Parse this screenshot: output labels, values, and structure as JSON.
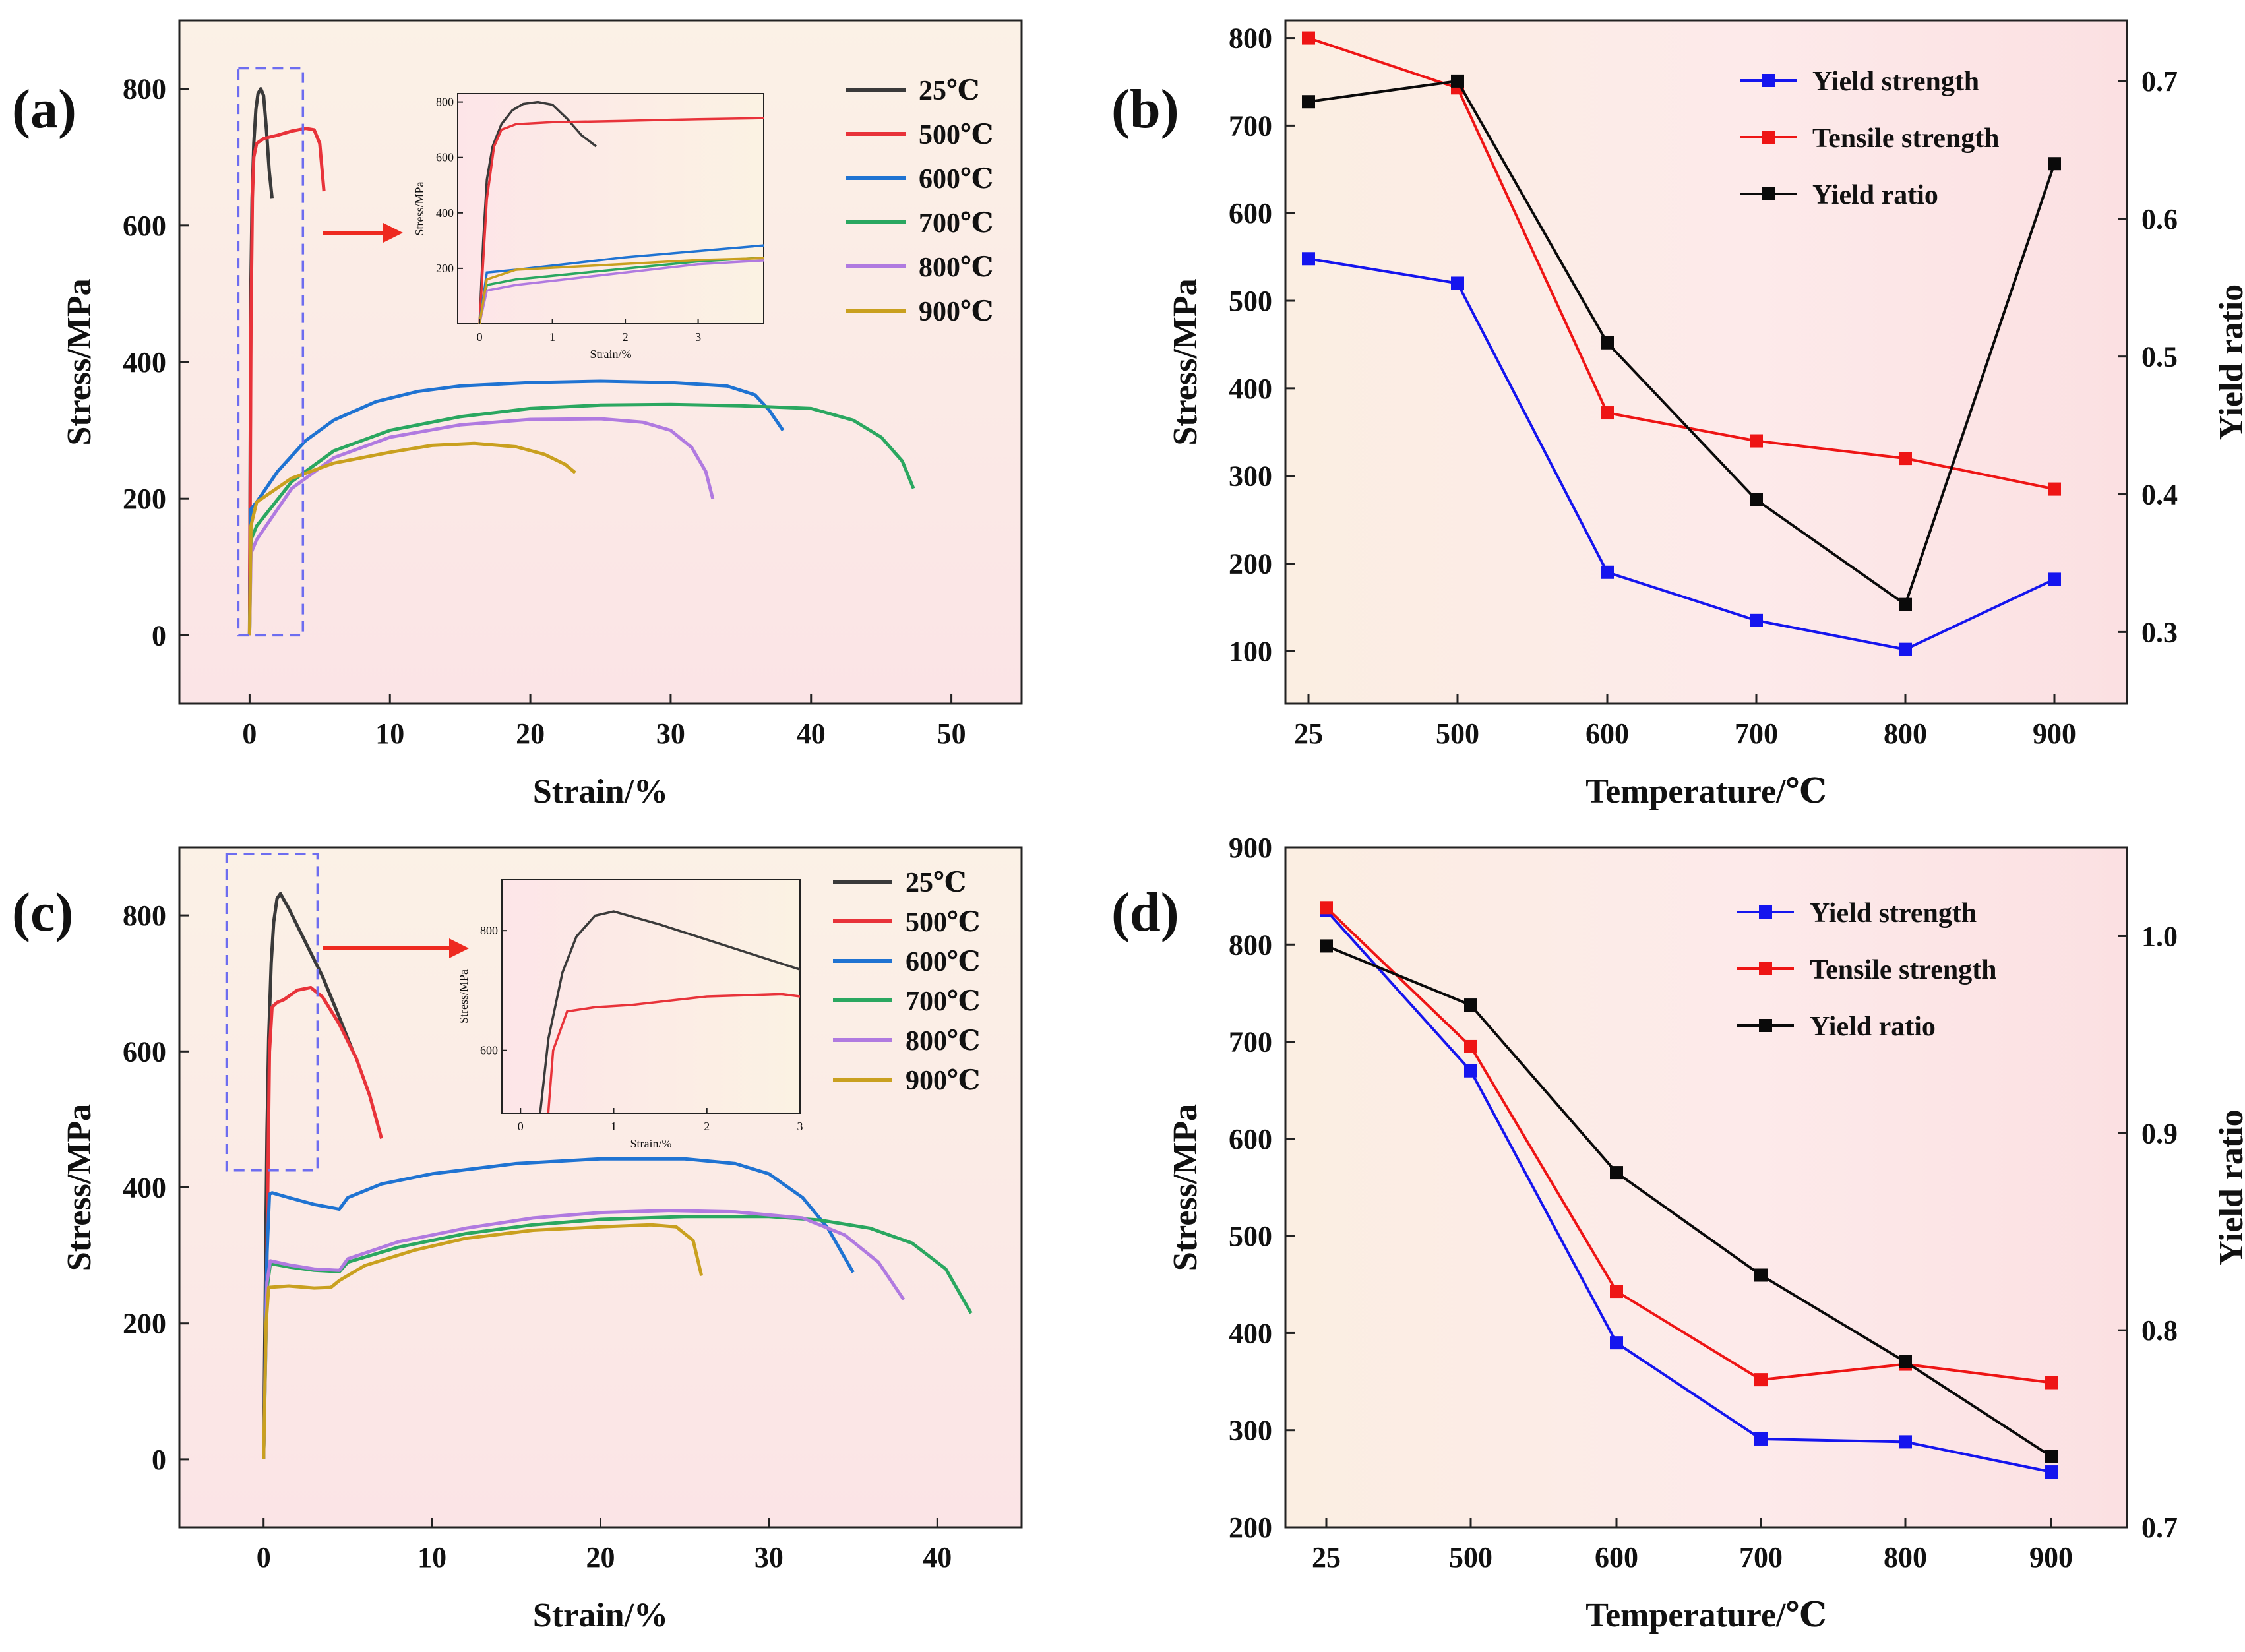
{
  "colors": {
    "25": "#3a3a3a",
    "500": "#e8333a",
    "600": "#1f73d2",
    "700": "#2aa760",
    "800": "#b07ae0",
    "900": "#c9a01f",
    "ys": "#1515ee",
    "ts": "#ee1515",
    "yr": "#0a0a0a",
    "box": "#6d6df0",
    "arrow": "#ee2a20",
    "bgTop": "#fbe3e3",
    "bgMid": "#fbefe3",
    "bgRight": "#fdebeb"
  },
  "chart_data": [
    {
      "id": "a",
      "label": "(a)",
      "type": "line",
      "xlabel": "Strain/%",
      "ylabel": "Stress/MPa",
      "xlim": [
        -5,
        55
      ],
      "ylim": [
        -100,
        900
      ],
      "xticks": [
        0,
        10,
        20,
        30,
        40,
        50
      ],
      "yticks": [
        0,
        200,
        400,
        600,
        800
      ],
      "zoom_box": {
        "x": [
          -0.8,
          3.8
        ],
        "y": [
          0,
          830
        ]
      },
      "series": [
        {
          "name": "25℃",
          "key": "25",
          "points": [
            [
              0,
              0
            ],
            [
              0.05,
              300
            ],
            [
              0.1,
              520
            ],
            [
              0.18,
              640
            ],
            [
              0.3,
              720
            ],
            [
              0.45,
              770
            ],
            [
              0.6,
              793
            ],
            [
              0.8,
              800
            ],
            [
              1.0,
              790
            ],
            [
              1.2,
              740
            ],
            [
              1.4,
              680
            ],
            [
              1.6,
              640
            ]
          ]
        },
        {
          "name": "500℃",
          "key": "500",
          "points": [
            [
              0,
              0
            ],
            [
              0.1,
              450
            ],
            [
              0.2,
              640
            ],
            [
              0.3,
              700
            ],
            [
              0.5,
              720
            ],
            [
              1,
              727
            ],
            [
              2,
              732
            ],
            [
              3,
              738
            ],
            [
              4,
              742
            ],
            [
              4.6,
              740
            ],
            [
              5,
              720
            ],
            [
              5.3,
              650
            ]
          ]
        },
        {
          "name": "600℃",
          "key": "600",
          "points": [
            [
              0,
              0
            ],
            [
              0.1,
              185
            ],
            [
              0.5,
              195
            ],
            [
              2,
              240
            ],
            [
              4,
              285
            ],
            [
              6,
              315
            ],
            [
              9,
              342
            ],
            [
              12,
              357
            ],
            [
              15,
              365
            ],
            [
              20,
              370
            ],
            [
              25,
              372
            ],
            [
              30,
              370
            ],
            [
              34,
              365
            ],
            [
              36,
              352
            ],
            [
              37,
              330
            ],
            [
              38,
              300
            ]
          ]
        },
        {
          "name": "700℃",
          "key": "700",
          "points": [
            [
              0,
              0
            ],
            [
              0.1,
              140
            ],
            [
              0.5,
              160
            ],
            [
              3,
              225
            ],
            [
              6,
              270
            ],
            [
              10,
              300
            ],
            [
              15,
              320
            ],
            [
              20,
              332
            ],
            [
              25,
              337
            ],
            [
              30,
              338
            ],
            [
              35,
              336
            ],
            [
              40,
              332
            ],
            [
              43,
              315
            ],
            [
              45,
              290
            ],
            [
              46.5,
              255
            ],
            [
              47.3,
              215
            ]
          ]
        },
        {
          "name": "800℃",
          "key": "800",
          "points": [
            [
              0,
              0
            ],
            [
              0.1,
              120
            ],
            [
              0.5,
              140
            ],
            [
              3,
              215
            ],
            [
              6,
              260
            ],
            [
              10,
              290
            ],
            [
              15,
              308
            ],
            [
              20,
              316
            ],
            [
              25,
              317
            ],
            [
              28,
              312
            ],
            [
              30,
              300
            ],
            [
              31.5,
              275
            ],
            [
              32.5,
              240
            ],
            [
              33,
              200
            ]
          ]
        },
        {
          "name": "900℃",
          "key": "900",
          "points": [
            [
              0,
              0
            ],
            [
              0.1,
              160
            ],
            [
              0.5,
              195
            ],
            [
              3,
              230
            ],
            [
              6,
              252
            ],
            [
              10,
              268
            ],
            [
              13,
              278
            ],
            [
              16,
              281
            ],
            [
              19,
              276
            ],
            [
              21,
              265
            ],
            [
              22.5,
              250
            ],
            [
              23.2,
              238
            ]
          ]
        }
      ],
      "inset": {
        "xlabel": "Strain/%",
        "ylabel": "Stress/MPa",
        "xlim": [
          -0.3,
          3.9
        ],
        "ylim": [
          0,
          830
        ],
        "xticks": [
          0,
          1,
          2,
          3
        ],
        "yticks": [
          200,
          400,
          600,
          800
        ]
      }
    },
    {
      "id": "b",
      "label": "(b)",
      "type": "line",
      "xlabel": "Temperature/℃",
      "ylabel": "Stress/MPa",
      "y2label": "Yield ratio",
      "categories": [
        "25",
        "500",
        "600",
        "700",
        "800",
        "900"
      ],
      "ylim": [
        40,
        820
      ],
      "y2lim": [
        0.248,
        0.744
      ],
      "yticks": [
        100,
        200,
        300,
        400,
        500,
        600,
        700,
        800
      ],
      "y2ticks": [
        0.3,
        0.4,
        0.5,
        0.6,
        0.7
      ],
      "series": [
        {
          "name": "Yield strength",
          "key": "ys",
          "axis": "left",
          "values": [
            548,
            520,
            190,
            135,
            102,
            182
          ]
        },
        {
          "name": "Tensile strength",
          "key": "ts",
          "axis": "left",
          "values": [
            800,
            743,
            372,
            340,
            320,
            285
          ]
        },
        {
          "name": "Yield ratio",
          "key": "yr",
          "axis": "right",
          "values": [
            0.685,
            0.7,
            0.51,
            0.396,
            0.32,
            0.64
          ]
        }
      ]
    },
    {
      "id": "c",
      "label": "(c)",
      "type": "line",
      "xlabel": "Strain/%",
      "ylabel": "Stress/MPa",
      "xlim": [
        -5,
        45
      ],
      "ylim": [
        -100,
        900
      ],
      "xticks": [
        0,
        10,
        20,
        30,
        40
      ],
      "yticks": [
        0,
        200,
        400,
        600,
        800
      ],
      "zoom_box": {
        "x": [
          -2.2,
          3.2
        ],
        "y": [
          425,
          890
        ]
      },
      "series": [
        {
          "name": "25℃",
          "key": "25",
          "points": [
            [
              0,
              0
            ],
            [
              0.1,
              250
            ],
            [
              0.2,
              480
            ],
            [
              0.3,
              620
            ],
            [
              0.45,
              730
            ],
            [
              0.6,
              790
            ],
            [
              0.8,
              825
            ],
            [
              1.0,
              832
            ],
            [
              1.5,
              810
            ],
            [
              2.5,
              760
            ],
            [
              3.5,
              710
            ],
            [
              4.5,
              650
            ],
            [
              5.3,
              600
            ]
          ]
        },
        {
          "name": "500℃",
          "key": "500",
          "points": [
            [
              0,
              0
            ],
            [
              0.2,
              300
            ],
            [
              0.35,
              600
            ],
            [
              0.5,
              665
            ],
            [
              0.8,
              672
            ],
            [
              1.2,
              676
            ],
            [
              2,
              690
            ],
            [
              2.8,
              694
            ],
            [
              3.5,
              680
            ],
            [
              4.5,
              640
            ],
            [
              5.5,
              590
            ],
            [
              6.3,
              535
            ],
            [
              7,
              472
            ]
          ]
        },
        {
          "name": "600℃",
          "key": "600",
          "points": [
            [
              0,
              0
            ],
            [
              0.2,
              300
            ],
            [
              0.35,
              390
            ],
            [
              0.5,
              392
            ],
            [
              1.5,
              385
            ],
            [
              3,
              375
            ],
            [
              4.5,
              368
            ],
            [
              5,
              385
            ],
            [
              7,
              405
            ],
            [
              10,
              420
            ],
            [
              15,
              435
            ],
            [
              20,
              442
            ],
            [
              25,
              442
            ],
            [
              28,
              435
            ],
            [
              30,
              420
            ],
            [
              32,
              385
            ],
            [
              33.5,
              340
            ],
            [
              35,
              275
            ]
          ]
        },
        {
          "name": "700℃",
          "key": "700",
          "points": [
            [
              0,
              0
            ],
            [
              0.2,
              250
            ],
            [
              0.4,
              288
            ],
            [
              1.5,
              283
            ],
            [
              3,
              278
            ],
            [
              4.5,
              276
            ],
            [
              5,
              290
            ],
            [
              8,
              312
            ],
            [
              12,
              332
            ],
            [
              16,
              345
            ],
            [
              20,
              353
            ],
            [
              25,
              357
            ],
            [
              30,
              357
            ],
            [
              33,
              352
            ],
            [
              36,
              340
            ],
            [
              38.5,
              318
            ],
            [
              40.5,
              280
            ],
            [
              42,
              215
            ]
          ]
        },
        {
          "name": "800℃",
          "key": "800",
          "points": [
            [
              0,
              0
            ],
            [
              0.2,
              260
            ],
            [
              0.4,
              292
            ],
            [
              1.5,
              286
            ],
            [
              3,
              280
            ],
            [
              4.5,
              278
            ],
            [
              5,
              295
            ],
            [
              8,
              320
            ],
            [
              12,
              340
            ],
            [
              16,
              355
            ],
            [
              20,
              363
            ],
            [
              24,
              366
            ],
            [
              28,
              364
            ],
            [
              32,
              355
            ],
            [
              34.5,
              330
            ],
            [
              36.5,
              290
            ],
            [
              38,
              235
            ]
          ]
        },
        {
          "name": "900℃",
          "key": "900",
          "points": [
            [
              0,
              0
            ],
            [
              0.15,
              200
            ],
            [
              0.3,
              253
            ],
            [
              1.5,
              255
            ],
            [
              3,
              252
            ],
            [
              4,
              253
            ],
            [
              4.5,
              263
            ],
            [
              6,
              285
            ],
            [
              9,
              308
            ],
            [
              12,
              325
            ],
            [
              16,
              337
            ],
            [
              20,
              342
            ],
            [
              23,
              345
            ],
            [
              24.5,
              342
            ],
            [
              25.5,
              322
            ],
            [
              26,
              270
            ]
          ]
        }
      ],
      "inset": {
        "xlabel": "Strain/%",
        "ylabel": "Stress/MPa",
        "xlim": [
          -0.2,
          3.0
        ],
        "ylim": [
          495,
          885
        ],
        "xticks": [
          0,
          1,
          2,
          3
        ],
        "yticks": [
          600,
          800
        ]
      }
    },
    {
      "id": "d",
      "label": "(d)",
      "type": "line",
      "xlabel": "Temperature/℃",
      "ylabel": "Stress/MPa",
      "y2label": "Yield ratio",
      "categories": [
        "25",
        "500",
        "600",
        "700",
        "800",
        "900"
      ],
      "ylim": [
        200,
        900
      ],
      "y2lim": [
        0.7,
        1.045
      ],
      "yticks": [
        200,
        300,
        400,
        500,
        600,
        700,
        800,
        900
      ],
      "y2ticks": [
        0.7,
        0.8,
        0.9,
        1.0
      ],
      "y2tick_labels": [
        "0.7",
        "0.8",
        "0.9",
        "1.0"
      ],
      "series": [
        {
          "name": "Yield strength",
          "key": "ys",
          "axis": "left",
          "values": [
            835,
            670,
            390,
            291,
            288,
            257
          ]
        },
        {
          "name": "Tensile strength",
          "key": "ts",
          "axis": "left",
          "values": [
            838,
            695,
            443,
            352,
            368,
            349
          ]
        },
        {
          "name": "Yield ratio",
          "key": "yr",
          "axis": "right",
          "values": [
            0.995,
            0.965,
            0.88,
            0.828,
            0.784,
            0.736
          ]
        }
      ]
    }
  ]
}
